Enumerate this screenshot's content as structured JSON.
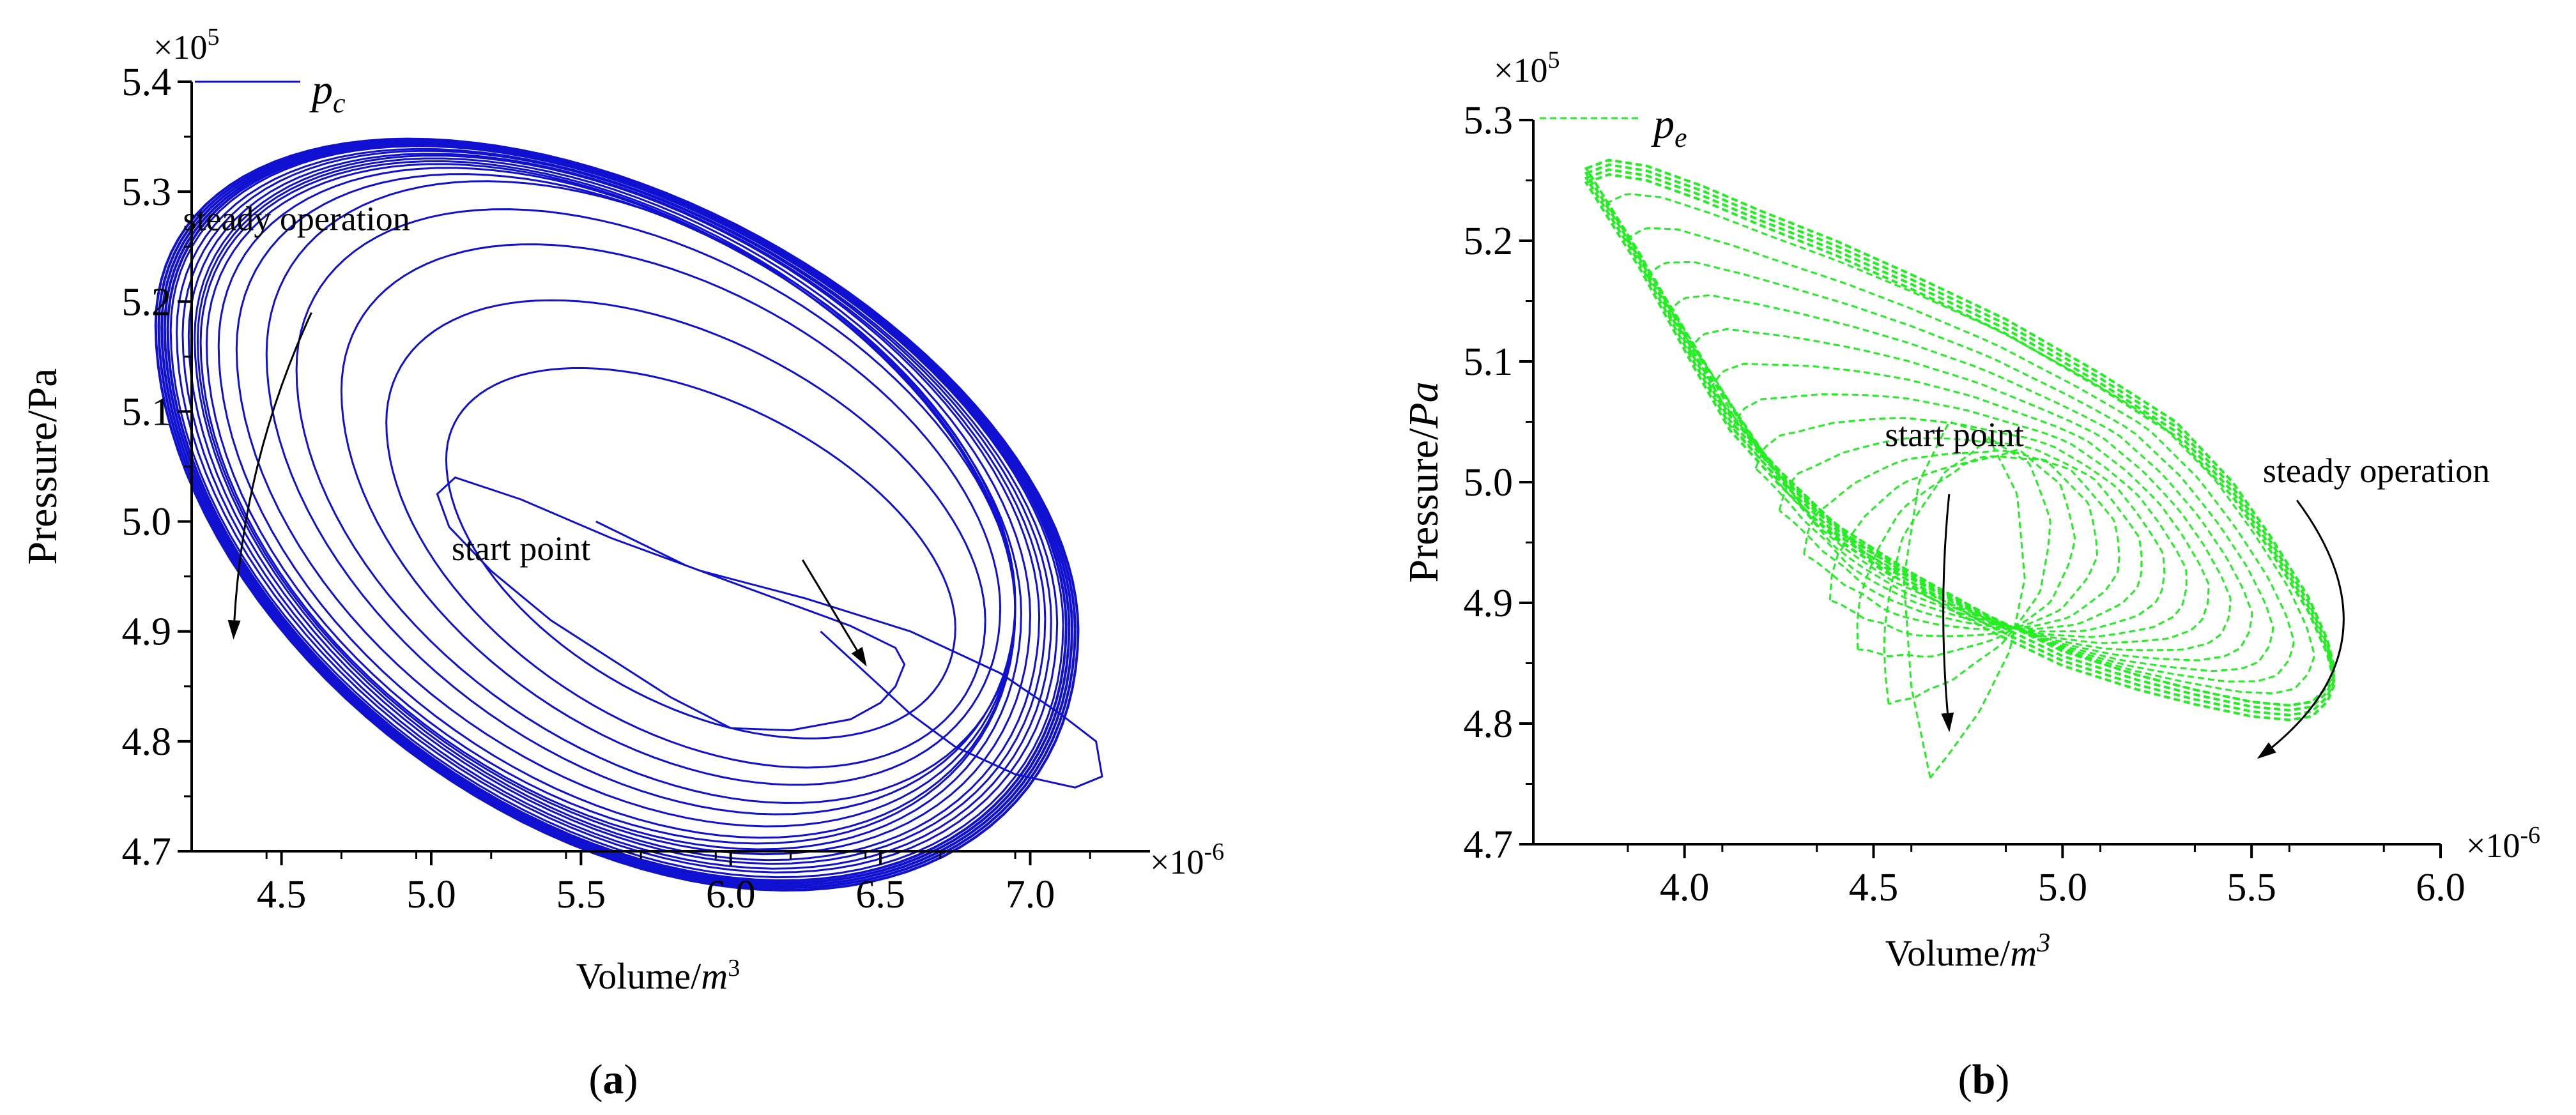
{
  "chart_data": [
    {
      "type": "line",
      "panel": "a",
      "caption": "(a)",
      "xlabel": "Volume/m3",
      "ylabel": "Pressure/Pa",
      "x_multiplier": "×10-6",
      "y_multiplier": "×105",
      "xlim": [
        4.2,
        7.4
      ],
      "ylim": [
        4.7,
        5.4
      ],
      "x_ticks": [
        4.5,
        5.0,
        5.5,
        6.0,
        6.5,
        7.0
      ],
      "x_tick_labels": [
        "4.5",
        "5.0",
        "5.5",
        "6.0",
        "6.5",
        "7.0"
      ],
      "y_ticks": [
        4.7,
        4.8,
        4.9,
        5.0,
        5.1,
        5.2,
        5.3,
        5.4
      ],
      "y_tick_labels": [
        "4.7",
        "4.8",
        "4.9",
        "5.0",
        "5.1",
        "5.2",
        "5.3",
        "5.4"
      ],
      "legend": {
        "label": "pc",
        "placement": "top-left"
      },
      "color": "#1010d0",
      "line_style": "solid",
      "annotations": [
        {
          "text": "steady operation",
          "x": 4.55,
          "y": 5.265
        },
        {
          "text": "start point",
          "x": 5.3,
          "y": 4.965
        }
      ],
      "arrows": [
        {
          "from": [
            4.6,
            5.19
          ],
          "to": [
            4.34,
            4.895
          ],
          "curve": 0.1
        },
        {
          "from": [
            6.24,
            4.965
          ],
          "to": [
            6.45,
            4.87
          ],
          "curve": 0
        }
      ],
      "series": [
        {
          "x": [
            5.55,
            5.85,
            6.15,
            6.4,
            6.55,
            6.58,
            6.55,
            6.5,
            6.4,
            6.2,
            6.0,
            5.8,
            5.6,
            5.4,
            5.2,
            5.06,
            5.02,
            5.08,
            5.3,
            5.6,
            5.9,
            6.25,
            6.6,
            6.9,
            7.1,
            7.22,
            7.24,
            7.15,
            6.95,
            6.75,
            6.6,
            6.5,
            6.4,
            6.3
          ],
          "y": [
            5.0,
            4.96,
            4.93,
            4.905,
            4.885,
            4.87,
            4.85,
            4.835,
            4.82,
            4.81,
            4.812,
            4.84,
            4.875,
            4.91,
            4.955,
            4.995,
            5.025,
            5.04,
            5.02,
            4.985,
            4.955,
            4.93,
            4.9,
            4.862,
            4.825,
            4.8,
            4.768,
            4.758,
            4.77,
            4.795,
            4.825,
            4.85,
            4.875,
            4.9
          ]
        }
      ],
      "loops": [
        {
          "cx": 5.9,
          "cy": 4.98,
          "rx": 0.85,
          "ry": 0.14,
          "yshift": -0.02
        },
        {
          "cx": 5.85,
          "cy": 5.0,
          "rx": 1.0,
          "ry": 0.18,
          "yshift": -0.025
        },
        {
          "cx": 5.8,
          "cy": 5.02,
          "rx": 1.1,
          "ry": 0.21,
          "yshift": -0.03
        },
        {
          "cx": 5.75,
          "cy": 5.03,
          "rx": 1.2,
          "ry": 0.23,
          "yshift": -0.035
        },
        {
          "cx": 5.7,
          "cy": 5.04,
          "rx": 1.25,
          "ry": 0.245,
          "yshift": -0.04
        },
        {
          "cx": 5.65,
          "cy": 5.04,
          "rx": 1.3,
          "ry": 0.25,
          "yshift": -0.045
        },
        {
          "cx": 5.62,
          "cy": 5.04,
          "rx": 1.33,
          "ry": 0.255,
          "yshift": -0.05
        },
        {
          "cx": 5.6,
          "cy": 5.04,
          "rx": 1.35,
          "ry": 0.258,
          "yshift": -0.052
        },
        {
          "cx": 5.6,
          "cy": 5.04,
          "rx": 1.37,
          "ry": 0.26,
          "yshift": -0.055
        },
        {
          "cx": 5.61,
          "cy": 5.04,
          "rx": 1.39,
          "ry": 0.262,
          "yshift": -0.057
        },
        {
          "cx": 5.62,
          "cy": 5.04,
          "rx": 1.41,
          "ry": 0.264,
          "yshift": -0.06
        },
        {
          "cx": 5.62,
          "cy": 5.04,
          "rx": 1.43,
          "ry": 0.265,
          "yshift": -0.062
        },
        {
          "cx": 5.62,
          "cy": 5.04,
          "rx": 1.45,
          "ry": 0.267,
          "yshift": -0.064
        },
        {
          "cx": 5.62,
          "cy": 5.04,
          "rx": 1.47,
          "ry": 0.268,
          "yshift": -0.066
        },
        {
          "cx": 5.62,
          "cy": 5.04,
          "rx": 1.49,
          "ry": 0.27,
          "yshift": -0.068
        },
        {
          "cx": 5.62,
          "cy": 5.04,
          "rx": 1.5,
          "ry": 0.271,
          "yshift": -0.07
        },
        {
          "cx": 5.62,
          "cy": 5.04,
          "rx": 1.51,
          "ry": 0.272,
          "yshift": -0.071
        },
        {
          "cx": 5.62,
          "cy": 5.04,
          "rx": 1.52,
          "ry": 0.273,
          "yshift": -0.072
        },
        {
          "cx": 5.62,
          "cy": 5.04,
          "rx": 1.53,
          "ry": 0.274,
          "yshift": -0.073
        },
        {
          "cx": 5.62,
          "cy": 5.04,
          "rx": 1.54,
          "ry": 0.275,
          "yshift": -0.074
        }
      ]
    },
    {
      "type": "line",
      "panel": "b",
      "caption": "(b)",
      "xlabel": "Volume/m3",
      "ylabel": "Pressure/Pa",
      "x_multiplier": "×10-6",
      "y_multiplier": "×105",
      "xlim": [
        3.6,
        6.0
      ],
      "ylim": [
        4.7,
        5.3
      ],
      "x_ticks": [
        4.0,
        4.5,
        5.0,
        5.5,
        6.0
      ],
      "x_tick_labels": [
        "4.0",
        "4.5",
        "5.0",
        "5.5",
        "6.0"
      ],
      "y_ticks": [
        4.7,
        4.8,
        4.9,
        5.0,
        5.1,
        5.2,
        5.3
      ],
      "y_tick_labels": [
        "4.7",
        "4.8",
        "4.9",
        "5.0",
        "5.1",
        "5.2",
        "5.3"
      ],
      "legend": {
        "label": "pe",
        "placement": "top-left"
      },
      "color": "#22ee22",
      "line_style": "dashed",
      "annotations": [
        {
          "text": "steady operation",
          "x": 5.53,
          "y": 5.0
        },
        {
          "text": "start point",
          "x": 4.53,
          "y": 5.03
        }
      ],
      "arrows": [
        {
          "from": [
            5.62,
            4.985
          ],
          "to": [
            5.52,
            4.772
          ],
          "curve": -0.5
        },
        {
          "from": [
            4.7,
            4.99
          ],
          "to": [
            4.7,
            4.795
          ],
          "curve": 0.05
        }
      ],
      "steady_loop": {
        "x": [
          3.74,
          3.8,
          3.9,
          4.05,
          4.2,
          4.4,
          4.6,
          4.85,
          5.1,
          5.3,
          5.45,
          5.55,
          5.65,
          5.7,
          5.72,
          5.7,
          5.66,
          5.6,
          5.5,
          5.35,
          5.2,
          5.0,
          4.8,
          4.6,
          4.4,
          4.25,
          4.12,
          4.02,
          3.95,
          3.88,
          3.8,
          3.74
        ],
        "y": [
          5.26,
          5.267,
          5.262,
          5.245,
          5.225,
          5.2,
          5.172,
          5.135,
          5.09,
          5.05,
          5.0,
          4.955,
          4.905,
          4.87,
          4.845,
          4.83,
          4.818,
          4.815,
          4.818,
          4.828,
          4.84,
          4.86,
          4.89,
          4.925,
          4.965,
          5.01,
          5.055,
          5.11,
          5.15,
          5.19,
          5.23,
          5.26
        ]
      },
      "start_loop": {
        "x": [
          4.65,
          4.6,
          4.58,
          4.62,
          4.7,
          4.8,
          4.88,
          4.9,
          4.86,
          4.78,
          4.7,
          4.65
        ],
        "y": [
          4.755,
          4.83,
          4.92,
          5.0,
          5.05,
          5.04,
          4.99,
          4.92,
          4.86,
          4.81,
          4.775,
          4.755
        ]
      },
      "transient_loops": 14
    }
  ]
}
